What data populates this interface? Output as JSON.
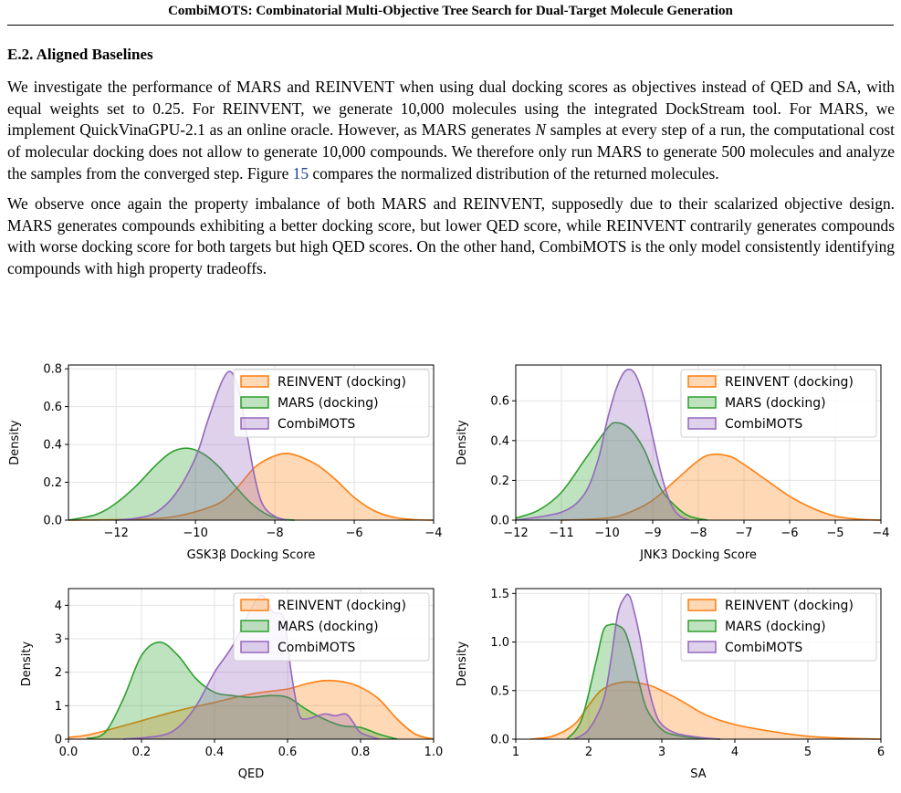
{
  "header": {
    "running_title": "CombiMOTS: Combinatorial Multi-Objective Tree Search for Dual-Target Molecule Generation"
  },
  "section": {
    "title": "E.2. Aligned Baselines"
  },
  "paragraph1": {
    "part1": "We investigate the performance of MARS and REINVENT when using dual docking scores as objectives instead of QED and SA, with equal weights set to 0.25. For REINVENT, we generate 10,000 molecules using the integrated DockStream tool. For MARS, we implement QuickVinaGPU-2.1 as an online oracle. However, as MARS generates ",
    "var": "N",
    "part2": " samples at every step of a run, the computational cost of molecular docking does not allow to generate 10,000 compounds. We therefore only run MARS to generate 500 molecules and analyze the samples from the converged step. Figure ",
    "ref": "15",
    "part3": " compares the normalized distribution of the returned molecules."
  },
  "paragraph2": {
    "text": "We observe once again the property imbalance of both MARS and REINVENT, supposedly due to their scalarized objective design. MARS generates compounds exhibiting a better docking score, but lower QED score, while REINVENT contrarily generates compounds with worse docking score for both targets but high QED scores. On the other hand, CombiMOTS is the only model consistently identifying compounds with high property tradeoffs."
  },
  "colors": {
    "reinvent": "#ff7f0e",
    "mars": "#2ca02c",
    "combimots": "#9467bd"
  },
  "chart_data": [
    {
      "type": "area",
      "xlabel": "GSK3β Docking Score",
      "ylabel": "Density",
      "xlim": [
        -13.2,
        -4
      ],
      "ylim": [
        0,
        0.82
      ],
      "xticks": [
        -12,
        -10,
        -8,
        -6,
        -4
      ],
      "xtick_labels": [
        "−12",
        "−10",
        "−8",
        "−6",
        "−4"
      ],
      "yticks": [
        0,
        0.2,
        0.4,
        0.6,
        0.8
      ],
      "ytick_labels": [
        "0.0",
        "0.2",
        "0.4",
        "0.6",
        "0.8"
      ],
      "grid": true,
      "legend_position": "top-right",
      "series": [
        {
          "name": "REINVENT (docking)",
          "x": [
            -13.2,
            -11.5,
            -10.5,
            -9.5,
            -9,
            -8.5,
            -8,
            -7.6,
            -7,
            -6.5,
            -6,
            -5.5,
            -5,
            -4.5,
            -4
          ],
          "y": [
            0,
            0.005,
            0.02,
            0.08,
            0.16,
            0.28,
            0.34,
            0.35,
            0.3,
            0.22,
            0.12,
            0.05,
            0.015,
            0.003,
            0
          ]
        },
        {
          "name": "MARS (docking)",
          "x": [
            -13.2,
            -12.5,
            -12,
            -11.5,
            -11,
            -10.6,
            -10.2,
            -9.8,
            -9.4,
            -9,
            -8.6,
            -8.2,
            -7.8,
            -7.5
          ],
          "y": [
            0,
            0.03,
            0.09,
            0.18,
            0.29,
            0.36,
            0.38,
            0.35,
            0.28,
            0.18,
            0.09,
            0.03,
            0.005,
            0
          ]
        },
        {
          "name": "CombiMOTS",
          "x": [
            -12,
            -11.5,
            -11,
            -10.5,
            -10,
            -9.7,
            -9.4,
            -9.2,
            -9.05,
            -8.9,
            -8.7,
            -8.5,
            -8.3,
            -8,
            -7.7
          ],
          "y": [
            0,
            0.01,
            0.04,
            0.14,
            0.33,
            0.52,
            0.7,
            0.78,
            0.77,
            0.68,
            0.45,
            0.22,
            0.08,
            0.02,
            0
          ]
        }
      ]
    },
    {
      "type": "area",
      "xlabel": "JNK3 Docking Score",
      "ylabel": "Density",
      "xlim": [
        -12,
        -4
      ],
      "ylim": [
        0,
        0.78
      ],
      "xticks": [
        -12,
        -11,
        -10,
        -9,
        -8,
        -7,
        -6,
        -5,
        -4
      ],
      "xtick_labels": [
        "−12",
        "−11",
        "−10",
        "−9",
        "−8",
        "−7",
        "−6",
        "−5",
        "−4"
      ],
      "yticks": [
        0,
        0.2,
        0.4,
        0.6
      ],
      "ytick_labels": [
        "0.0",
        "0.2",
        "0.4",
        "0.6"
      ],
      "grid": true,
      "legend_position": "top-right",
      "series": [
        {
          "name": "REINVENT (docking)",
          "x": [
            -11,
            -10,
            -9.5,
            -9,
            -8.5,
            -8,
            -7.7,
            -7.3,
            -7,
            -6.5,
            -6,
            -5.5,
            -5,
            -4.5,
            -4
          ],
          "y": [
            0,
            0.01,
            0.04,
            0.1,
            0.2,
            0.3,
            0.33,
            0.32,
            0.28,
            0.2,
            0.12,
            0.06,
            0.02,
            0.005,
            0
          ]
        },
        {
          "name": "MARS (docking)",
          "x": [
            -12,
            -11.5,
            -11,
            -10.5,
            -10,
            -9.8,
            -9.5,
            -9.2,
            -9,
            -8.8,
            -8.5,
            -8.2,
            -7.8
          ],
          "y": [
            0.01,
            0.05,
            0.14,
            0.3,
            0.46,
            0.49,
            0.46,
            0.36,
            0.25,
            0.15,
            0.07,
            0.02,
            0
          ]
        },
        {
          "name": "CombiMOTS",
          "x": [
            -12,
            -11,
            -10.5,
            -10.2,
            -10,
            -9.8,
            -9.6,
            -9.4,
            -9.2,
            -9,
            -8.8,
            -8.6,
            -8.4,
            -8.2
          ],
          "y": [
            0,
            0.04,
            0.13,
            0.3,
            0.5,
            0.66,
            0.75,
            0.74,
            0.62,
            0.42,
            0.22,
            0.08,
            0.02,
            0
          ]
        }
      ]
    },
    {
      "type": "area",
      "xlabel": "QED",
      "ylabel": "Density",
      "xlim": [
        0,
        1
      ],
      "ylim": [
        0,
        4.5
      ],
      "xticks": [
        0,
        0.2,
        0.4,
        0.6,
        0.8,
        1.0
      ],
      "xtick_labels": [
        "0.0",
        "0.2",
        "0.4",
        "0.6",
        "0.8",
        "1.0"
      ],
      "yticks": [
        0,
        1,
        2,
        3,
        4
      ],
      "ytick_labels": [
        "0",
        "1",
        "2",
        "3",
        "4"
      ],
      "grid": true,
      "legend_position": "top-right",
      "series": [
        {
          "name": "REINVENT (docking)",
          "x": [
            0,
            0.05,
            0.1,
            0.2,
            0.3,
            0.4,
            0.5,
            0.6,
            0.65,
            0.7,
            0.75,
            0.8,
            0.85,
            0.9,
            0.95,
            1.0
          ],
          "y": [
            0.05,
            0.12,
            0.25,
            0.55,
            0.85,
            1.1,
            1.35,
            1.5,
            1.65,
            1.75,
            1.72,
            1.55,
            1.2,
            0.6,
            0.15,
            0
          ]
        },
        {
          "name": "MARS (docking)",
          "x": [
            0.05,
            0.1,
            0.15,
            0.2,
            0.25,
            0.3,
            0.35,
            0.4,
            0.45,
            0.5,
            0.55,
            0.6,
            0.65,
            0.7,
            0.75,
            0.8,
            0.85,
            0.9
          ],
          "y": [
            0.02,
            0.2,
            1.2,
            2.5,
            2.9,
            2.5,
            1.8,
            1.4,
            1.3,
            1.25,
            1.3,
            1.25,
            0.9,
            0.6,
            0.4,
            0.35,
            0.15,
            0
          ]
        },
        {
          "name": "CombiMOTS",
          "x": [
            0.15,
            0.25,
            0.3,
            0.35,
            0.4,
            0.45,
            0.5,
            0.53,
            0.56,
            0.59,
            0.61,
            0.63,
            0.65,
            0.7,
            0.73,
            0.76,
            0.78,
            0.8,
            0.85
          ],
          "y": [
            0,
            0.1,
            0.35,
            1.0,
            2.0,
            2.8,
            3.9,
            4.3,
            3.8,
            3.6,
            2.0,
            0.8,
            0.6,
            0.75,
            0.7,
            0.75,
            0.5,
            0.2,
            0
          ]
        }
      ]
    },
    {
      "type": "area",
      "xlabel": "SA",
      "ylabel": "Density",
      "xlim": [
        1,
        6
      ],
      "ylim": [
        0,
        1.55
      ],
      "xticks": [
        1,
        2,
        3,
        4,
        5,
        6
      ],
      "xtick_labels": [
        "1",
        "2",
        "3",
        "4",
        "5",
        "6"
      ],
      "yticks": [
        0,
        0.5,
        1.0,
        1.5
      ],
      "ytick_labels": [
        "0.0",
        "0.5",
        "1.0",
        "1.5"
      ],
      "grid": true,
      "legend_position": "top-right",
      "series": [
        {
          "name": "REINVENT (docking)",
          "x": [
            1.2,
            1.5,
            1.8,
            2.0,
            2.2,
            2.5,
            2.8,
            3.0,
            3.3,
            3.6,
            4.0,
            4.5,
            5.0,
            5.5,
            6.0
          ],
          "y": [
            0,
            0.03,
            0.15,
            0.35,
            0.52,
            0.59,
            0.56,
            0.5,
            0.38,
            0.25,
            0.15,
            0.08,
            0.03,
            0.01,
            0
          ]
        },
        {
          "name": "MARS (docking)",
          "x": [
            1.7,
            1.9,
            2.1,
            2.2,
            2.3,
            2.4,
            2.5,
            2.6,
            2.7,
            2.8,
            3.0,
            3.2,
            3.5,
            3.8
          ],
          "y": [
            0,
            0.2,
            0.8,
            1.12,
            1.18,
            1.17,
            1.1,
            0.85,
            0.55,
            0.3,
            0.1,
            0.04,
            0.01,
            0
          ]
        },
        {
          "name": "CombiMOTS",
          "x": [
            1.8,
            2.0,
            2.2,
            2.3,
            2.4,
            2.5,
            2.55,
            2.6,
            2.7,
            2.8,
            2.9,
            3.0,
            3.2,
            3.5,
            3.8
          ],
          "y": [
            0,
            0.1,
            0.4,
            0.8,
            1.3,
            1.47,
            1.48,
            1.38,
            1.05,
            0.6,
            0.3,
            0.15,
            0.06,
            0.02,
            0
          ]
        }
      ]
    }
  ]
}
